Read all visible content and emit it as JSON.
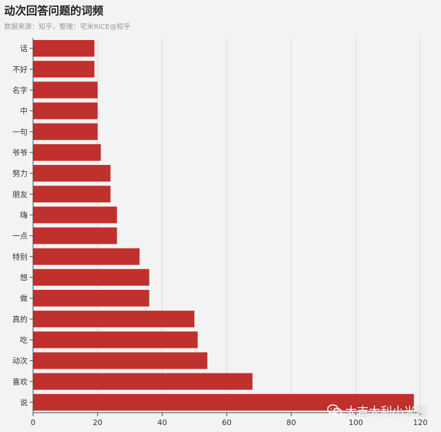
{
  "chart_data": {
    "type": "bar",
    "orientation": "horizontal",
    "title": "动次回答问题的词频",
    "subtitle": "数据来源：知乎，整理：宅米RICE@知乎",
    "categories": [
      "话",
      "不好",
      "名字",
      "中",
      "一句",
      "爷爷",
      "努力",
      "朋友",
      "嗨",
      "一点",
      "特别",
      "想",
      "做",
      "真的",
      "吃",
      "动次",
      "喜欢",
      "说"
    ],
    "values": [
      19,
      19,
      20,
      20,
      20,
      21,
      24,
      24,
      26,
      26,
      33,
      36,
      36,
      50,
      51,
      54,
      68,
      118
    ],
    "xlim": [
      0,
      120
    ],
    "xticks": [
      0,
      20,
      40,
      60,
      80,
      100,
      120
    ],
    "grid": true,
    "xlabel": "",
    "ylabel": "",
    "bar_color": "#c0312e"
  },
  "watermark": {
    "text": "大吉大利小米酱",
    "icon": "wechat-icon"
  }
}
